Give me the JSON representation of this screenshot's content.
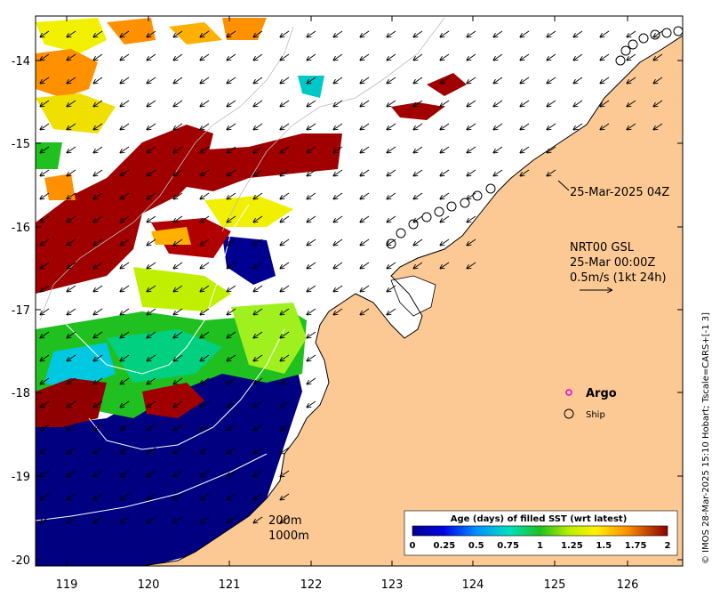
{
  "map": {
    "x_ticks": [
      "119",
      "120",
      "121",
      "122",
      "123",
      "124",
      "125",
      "126"
    ],
    "y_ticks": [
      "-14",
      "-15",
      "-16",
      "-17",
      "-18",
      "-19",
      "-20"
    ]
  },
  "annotations": {
    "ship_track_label": "25-Mar-2025 04Z",
    "current_title": "NRT00 GSL",
    "current_time": "25-Mar 00:00Z",
    "current_scale": "0.5m/s (1kt 24h)",
    "contour_200": "200m",
    "contour_1000": "1000m"
  },
  "legend": {
    "argo_label": "Argo",
    "ship_label": "Ship",
    "argo_color": "#e000e0"
  },
  "colorbar": {
    "title": "Age (days) of filled SST (wrt latest)",
    "labels": [
      "0",
      "0.25",
      "0.5",
      "0.75",
      "1",
      "1.25",
      "1.5",
      "1.75",
      "2"
    ],
    "colors": [
      "#00008b",
      "#0000d0",
      "#0060ff",
      "#00c8ff",
      "#00e0a0",
      "#30c030",
      "#a0e020",
      "#f0f000",
      "#ffb000",
      "#ff6000",
      "#c00000",
      "#8b0000"
    ]
  },
  "credit": "© IMOS 28-Mar-2025 15:10 Hobart; Tscale=CARS+[-1 3]",
  "colors": {
    "land": "#fcc994",
    "ocean_old": "#000080",
    "frame": "#000000"
  }
}
